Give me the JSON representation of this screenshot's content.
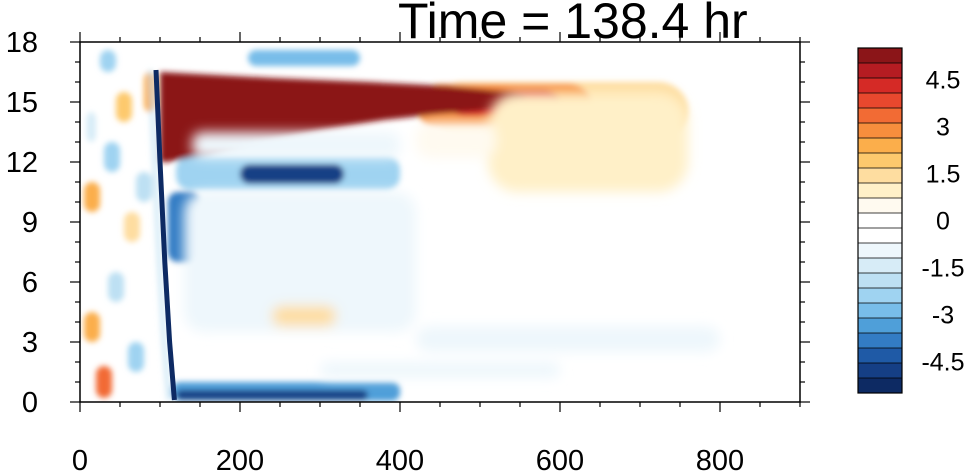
{
  "chart_data": {
    "type": "heatmap",
    "title": "Time = 138.4 hr",
    "xlabel": "",
    "ylabel": "",
    "xlim": [
      0,
      900
    ],
    "ylim": [
      0,
      18
    ],
    "x_ticks": [
      "0",
      "200",
      "400",
      "600",
      "800"
    ],
    "y_ticks": [
      "0",
      "3",
      "6",
      "9",
      "12",
      "15",
      "18"
    ],
    "colorbar": {
      "range": [
        -5.5,
        5.5
      ],
      "step": 0.5,
      "labels": [
        "4.5",
        "3",
        "1.5",
        "0",
        "-1.5",
        "-3",
        "-4.5"
      ],
      "colors": [
        "#8b1518",
        "#b51c22",
        "#d52a26",
        "#e8482e",
        "#f26b34",
        "#f78e3d",
        "#fbae4b",
        "#fdc96d",
        "#feddA0",
        "#fff0c8",
        "#fffaf0",
        "#ffffff",
        "#ffffff",
        "#eef7fc",
        "#d7ecf7",
        "#bde0f3",
        "#9fd3f1",
        "#78bde9",
        "#4f9fd9",
        "#337cc4",
        "#1f5aa6",
        "#153f85",
        "#0d2a63"
      ]
    },
    "features": [
      {
        "name": "upper warm band",
        "x_range": [
          100,
          560
        ],
        "y_range": [
          12.5,
          16.5
        ],
        "value": 5.5
      },
      {
        "name": "warm extension",
        "x_range": [
          560,
          760
        ],
        "y_range": [
          13,
          16
        ],
        "value": 2
      },
      {
        "name": "cold band below warm",
        "x_range": [
          110,
          400
        ],
        "y_range": [
          10.5,
          12.5
        ],
        "value": -4
      },
      {
        "name": "front line",
        "x_range": [
          90,
          120
        ],
        "y_range": [
          0,
          16.5
        ],
        "value": -5
      },
      {
        "name": "surface cold layer",
        "x_range": [
          110,
          400
        ],
        "y_range": [
          0,
          1.2
        ],
        "value": -4
      }
    ]
  }
}
